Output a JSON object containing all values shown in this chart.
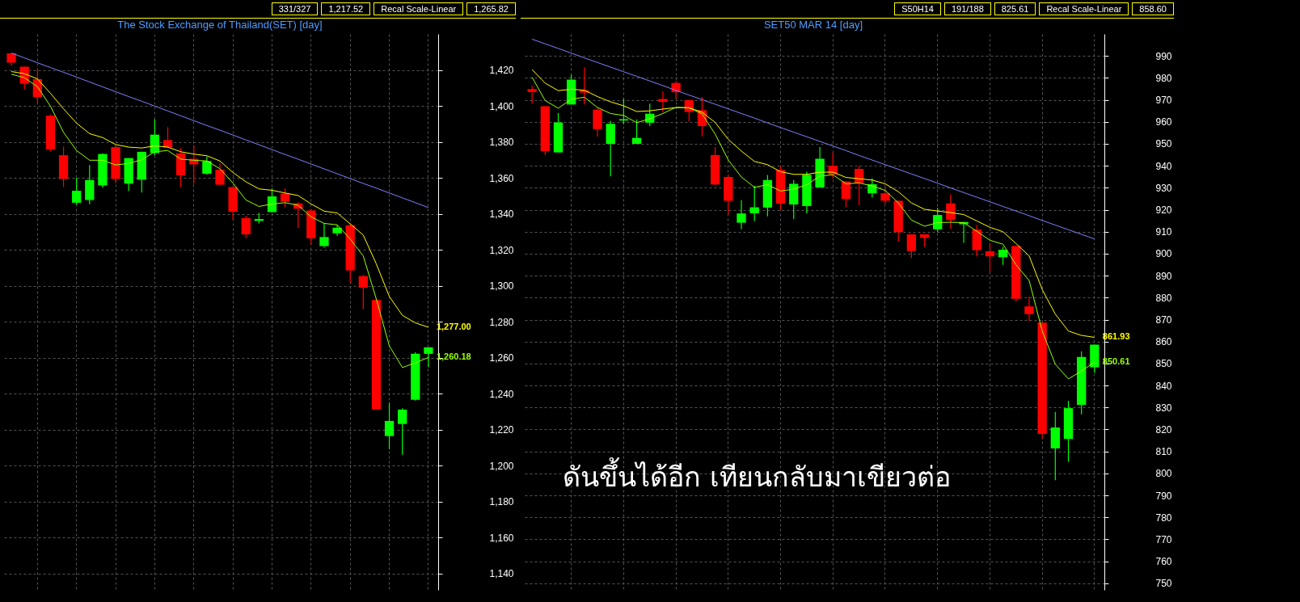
{
  "chart_data": [
    {
      "type": "candlestick",
      "title": "The Stock Exchange of Thailand(SET) [day]",
      "categories": [
        null,
        null,
        null,
        null,
        null,
        null,
        null,
        null,
        null,
        null,
        null,
        null,
        null,
        null,
        null,
        null,
        null,
        null,
        null,
        null,
        null,
        null,
        null,
        null,
        null,
        null,
        null,
        null,
        null,
        null,
        null,
        null,
        null
      ],
      "ohlc": [
        [
          1429.2,
          1429.2,
          1422.3,
          1424.0
        ],
        [
          1421.8,
          1421.8,
          1409.2,
          1412.4
        ],
        [
          1414.9,
          1420.8,
          1401.5,
          1404.9
        ],
        [
          1394.5,
          1395.2,
          1374.8,
          1375.9
        ],
        [
          1372.6,
          1377.4,
          1354.9,
          1359.4
        ],
        [
          1346.2,
          1360.0,
          1345.1,
          1352.8
        ],
        [
          1347.7,
          1367.1,
          1345.4,
          1358.8
        ],
        [
          1355.8,
          1373.6,
          1354.5,
          1373.3
        ],
        [
          1377.1,
          1378.1,
          1357.1,
          1359.4
        ],
        [
          1356.8,
          1371.0,
          1352.8,
          1371.0
        ],
        [
          1359.0,
          1374.5,
          1351.9,
          1374.5
        ],
        [
          1373.8,
          1392.6,
          1372.6,
          1384.0
        ],
        [
          1381.0,
          1388.2,
          1376.9,
          1376.9
        ],
        [
          1373.6,
          1376.6,
          1354.9,
          1361.4
        ],
        [
          1370.6,
          1378.1,
          1356.8,
          1367.5
        ],
        [
          1362.3,
          1371.9,
          1361.9,
          1369.4
        ],
        [
          1364.5,
          1368.3,
          1356.2,
          1356.2
        ],
        [
          1354.9,
          1354.9,
          1336.8,
          1341.2
        ],
        [
          1337.6,
          1339.0,
          1326.4,
          1328.6
        ],
        [
          1336.1,
          1340.5,
          1334.7,
          1337.1
        ],
        [
          1341.0,
          1354.1,
          1340.7,
          1349.7
        ],
        [
          1351.2,
          1354.1,
          1343.6,
          1346.7
        ],
        [
          1345.8,
          1346.5,
          1332.1,
          1342.9
        ],
        [
          1341.9,
          1342.6,
          1322.9,
          1326.4
        ],
        [
          1322.1,
          1334.8,
          1321.2,
          1327.1
        ],
        [
          1329.2,
          1333.8,
          1327.7,
          1332.3
        ],
        [
          1333.7,
          1334.7,
          1301.7,
          1308.6
        ],
        [
          1305.4,
          1306.0,
          1286.9,
          1298.9
        ],
        [
          1292.1,
          1293.0,
          1231.3,
          1231.3
        ],
        [
          1216.5,
          1235.1,
          1209.2,
          1224.9
        ],
        [
          1223.2,
          1231.9,
          1206.1,
          1231.2
        ],
        [
          1236.7,
          1263.0,
          1236.2,
          1262.3
        ],
        [
          1262.2,
          1265.9,
          1254.8,
          1265.82
        ]
      ],
      "colors": [
        "#ff0000",
        "#ff0000",
        "#ff0000",
        "#ff0000",
        "#ff0000",
        "#00ff00",
        "#00ff00",
        "#00ff00",
        "#ff0000",
        "#00ff00",
        "#00ff00",
        "#00ff00",
        "#ff0000",
        "#ff0000",
        "#ff0000",
        "#00ff00",
        "#ff0000",
        "#ff0000",
        "#ff0000",
        "#00ff00",
        "#00ff00",
        "#ff0000",
        "#ff0000",
        "#ff0000",
        "#00ff00",
        "#00ff00",
        "#ff0000",
        "#ff0000",
        "#ff0000",
        "#00ff00",
        "#00ff00",
        "#00ff00",
        "#00ff00"
      ],
      "series": [
        {
          "type": "line",
          "color": "#8080ff",
          "values": [
            1429.4,
            1426.7,
            1424.0,
            1421.3,
            1418.7,
            1416.0,
            1413.3,
            1410.6,
            1407.9,
            1405.2,
            1402.6,
            1399.9,
            1397.2,
            1394.5,
            1391.8,
            1389.1,
            1386.5,
            1383.8,
            1381.1,
            1378.4,
            1375.7,
            1373.0,
            1370.4,
            1367.7,
            1365.0,
            1362.3,
            1359.6,
            1356.9,
            1354.3,
            1351.6,
            1348.9,
            1346.2,
            1343.5
          ]
        },
        {
          "type": "line",
          "color": "#ffff00",
          "values": [
            1419.1,
            1417.9,
            1415.0,
            1407.0,
            1398.4,
            1390.4,
            1384.6,
            1382.4,
            1378.5,
            1377.1,
            1376.6,
            1377.8,
            1377.1,
            1374.5,
            1373.2,
            1372.3,
            1369.4,
            1363.0,
            1357.8,
            1353.9,
            1353.1,
            1351.6,
            1350.2,
            1345.5,
            1341.5,
            1340.5,
            1334.4,
            1328.2,
            1312.2,
            1294.1,
            1283.6,
            1279.4,
            1277.0
          ],
          "value_labels": [
            null,
            null,
            null,
            null,
            null,
            null,
            null,
            null,
            null,
            null,
            null,
            null,
            null,
            null,
            null,
            null,
            null,
            null,
            null,
            null,
            null,
            null,
            null,
            null,
            null,
            null,
            null,
            null,
            null,
            null,
            null,
            null,
            "1,277.00"
          ]
        },
        {
          "type": "line",
          "color": "#99ff00",
          "values": [
            1417.6,
            1415.7,
            1410.7,
            1399.8,
            1385.3,
            1375.2,
            1369.8,
            1369.8,
            1367.2,
            1368.0,
            1370.1,
            1374.5,
            1375.2,
            1370.4,
            1369.8,
            1369.4,
            1365.1,
            1357.1,
            1347.7,
            1344.1,
            1345.5,
            1346.2,
            1344.8,
            1338.3,
            1334.7,
            1333.9,
            1326.0,
            1316.6,
            1292.7,
            1266.6,
            1254.6,
            1257.2,
            1260.18
          ],
          "value_labels": [
            null,
            null,
            null,
            null,
            null,
            null,
            null,
            null,
            null,
            null,
            null,
            null,
            null,
            null,
            null,
            null,
            null,
            null,
            null,
            null,
            null,
            null,
            null,
            null,
            null,
            null,
            null,
            null,
            null,
            null,
            null,
            null,
            "1,260.18"
          ]
        }
      ],
      "ylim": [
        1131,
        1440
      ],
      "yticks": [
        {
          "value": 1140,
          "label": "1,140"
        },
        {
          "value": 1160,
          "label": "1,160"
        },
        {
          "value": 1180,
          "label": "1,180"
        },
        {
          "value": 1200,
          "label": "1,200"
        },
        {
          "value": 1220,
          "label": "1,220"
        },
        {
          "value": 1240,
          "label": "1,240"
        },
        {
          "value": 1260,
          "label": "1,260"
        },
        {
          "value": 1280,
          "label": "1,280"
        },
        {
          "value": 1300,
          "label": "1,300"
        },
        {
          "value": 1320,
          "label": "1,320"
        },
        {
          "value": 1340,
          "label": "1,340"
        },
        {
          "value": 1360,
          "label": "1,360"
        },
        {
          "value": 1380,
          "label": "1,380"
        },
        {
          "value": 1400,
          "label": "1,400"
        },
        {
          "value": 1420,
          "label": "1,420"
        }
      ],
      "grid": true,
      "annotations": [
        "331/327",
        "1,217.52",
        "Recal Scale-Linear",
        "1,265.82"
      ]
    },
    {
      "type": "candlestick",
      "title": "SET50 MAR 14   [day]",
      "subtitle": "ดันขึ้นได้อีก เทียนกลับมาเขียวต่อ",
      "categories": [
        null,
        null,
        null,
        null,
        null,
        null,
        null,
        null,
        null,
        null,
        null,
        null,
        null,
        null,
        null,
        null,
        null,
        null,
        null,
        null,
        null,
        null,
        null,
        null,
        null,
        null,
        null,
        null,
        null,
        null,
        null,
        null,
        null,
        null,
        null,
        null,
        null,
        null,
        null,
        null,
        null,
        null,
        null,
        null
      ],
      "ohlc": [
        [
          974.9,
          976.4,
          968.3,
          973.6
        ],
        [
          967.1,
          967.1,
          944.9,
          946.7
        ],
        [
          946.1,
          964.0,
          946.1,
          959.7
        ],
        [
          967.9,
          981.4,
          967.9,
          979.2
        ],
        [
          974.3,
          984.8,
          967.9,
          973.3
        ],
        [
          965.5,
          966.4,
          953.2,
          956.7
        ],
        [
          950.0,
          960.5,
          935.2,
          959.1
        ],
        [
          960.6,
          970.6,
          958.9,
          961.2
        ],
        [
          950.0,
          961.1,
          950.0,
          952.7
        ],
        [
          959.6,
          968.3,
          958.1,
          963.7
        ],
        [
          970.4,
          973.9,
          964.4,
          969.1
        ],
        [
          977.7,
          978.5,
          970.5,
          973.5
        ],
        [
          969.9,
          969.9,
          960.0,
          964.5
        ],
        [
          965.3,
          971.3,
          953.4,
          958.1
        ],
        [
          944.9,
          948.5,
          931.2,
          931.5
        ],
        [
          934.9,
          935.9,
          917.8,
          924.1
        ],
        [
          914.1,
          924.3,
          911.1,
          918.3
        ],
        [
          918.4,
          931.0,
          914.9,
          921.1
        ],
        [
          921.0,
          935.8,
          917.0,
          933.5
        ],
        [
          938.1,
          939.9,
          919.8,
          922.8
        ],
        [
          922.4,
          933.5,
          915.7,
          931.8
        ],
        [
          921.7,
          937.3,
          918.4,
          935.9
        ],
        [
          930.2,
          948.5,
          930.2,
          943.2
        ],
        [
          940.0,
          946.0,
          934.3,
          936.1
        ],
        [
          932.9,
          932.9,
          921.1,
          924.9
        ],
        [
          938.6,
          940.0,
          922.0,
          932.2
        ],
        [
          927.5,
          934.3,
          925.5,
          931.6
        ],
        [
          927.5,
          929.6,
          922.6,
          924.1
        ],
        [
          924.1,
          924.1,
          905.5,
          909.8
        ],
        [
          908.8,
          908.8,
          898.0,
          901.2
        ],
        [
          908.8,
          908.8,
          903.1,
          907.2
        ],
        [
          911.1,
          920.8,
          909.8,
          917.6
        ],
        [
          922.9,
          927.0,
          911.4,
          915.3
        ],
        [
          913.4,
          914.4,
          904.9,
          914.4
        ],
        [
          911.0,
          913.1,
          898.8,
          901.6
        ],
        [
          901.1,
          904.9,
          891.7,
          898.8
        ],
        [
          898.4,
          903.1,
          894.9,
          901.8
        ],
        [
          903.5,
          903.5,
          878.1,
          879.5
        ],
        [
          876.0,
          880.5,
          869.3,
          872.5
        ],
        [
          868.6,
          868.6,
          815.9,
          818.0
        ],
        [
          811.4,
          828.0,
          796.9,
          820.9
        ],
        [
          815.7,
          833.0,
          805.3,
          829.7
        ],
        [
          831.2,
          855.6,
          826.9,
          853.0
        ],
        [
          848.3,
          858.6,
          845.7,
          858.6
        ]
      ],
      "colors": [
        "#ff0000",
        "#ff0000",
        "#00ff00",
        "#00ff00",
        "#ff0000",
        "#ff0000",
        "#00ff00",
        "#00ff00",
        "#00ff00",
        "#00ff00",
        "#ff0000",
        "#ff0000",
        "#ff0000",
        "#ff0000",
        "#ff0000",
        "#ff0000",
        "#00ff00",
        "#00ff00",
        "#00ff00",
        "#ff0000",
        "#00ff00",
        "#00ff00",
        "#00ff00",
        "#ff0000",
        "#ff0000",
        "#ff0000",
        "#00ff00",
        "#ff0000",
        "#ff0000",
        "#ff0000",
        "#ff0000",
        "#00ff00",
        "#ff0000",
        "#00ff00",
        "#ff0000",
        "#ff0000",
        "#00ff00",
        "#ff0000",
        "#ff0000",
        "#ff0000",
        "#00ff00",
        "#00ff00",
        "#00ff00",
        "#00ff00"
      ],
      "series": [
        {
          "type": "line",
          "color": "#8080ff",
          "values": [
            997.6,
            995.5,
            993.4,
            991.3,
            989.1,
            987.0,
            984.9,
            982.8,
            980.7,
            978.6,
            976.5,
            974.3,
            972.2,
            970.1,
            968.0,
            965.9,
            963.8,
            961.7,
            959.5,
            957.4,
            955.3,
            953.2,
            951.1,
            949.0,
            946.9,
            944.7,
            942.6,
            940.5,
            938.4,
            936.3,
            934.2,
            932.1,
            929.9,
            927.8,
            925.7,
            923.6,
            921.5,
            919.4,
            917.3,
            915.1,
            913.0,
            910.9,
            908.8,
            906.7
          ]
        },
        {
          "type": "line",
          "color": "#ffff00",
          "values": [
            983.8,
            977.6,
            974.2,
            974.8,
            974.4,
            971.5,
            969.1,
            967.3,
            964.7,
            965.0,
            965.8,
            966.5,
            966.4,
            964.4,
            959.7,
            952.0,
            946.7,
            942.0,
            940.5,
            937.3,
            936.1,
            936.1,
            937.1,
            937.1,
            934.7,
            934.1,
            933.5,
            931.8,
            928.2,
            923.1,
            920.2,
            919.4,
            918.7,
            917.8,
            914.9,
            912.0,
            910.0,
            904.6,
            899.0,
            883.7,
            872.5,
            864.8,
            862.8,
            861.93
          ],
          "value_labels": [
            null,
            null,
            null,
            null,
            null,
            null,
            null,
            null,
            null,
            null,
            null,
            null,
            null,
            null,
            null,
            null,
            null,
            null,
            null,
            null,
            null,
            null,
            null,
            null,
            null,
            null,
            null,
            null,
            null,
            null,
            null,
            null,
            null,
            null,
            null,
            null,
            null,
            null,
            null,
            null,
            null,
            null,
            null,
            "861.93"
          ]
        },
        {
          "type": "line",
          "color": "#99ff00",
          "values": [
            980.3,
            969.7,
            966.2,
            970.3,
            971.2,
            966.5,
            963.8,
            962.9,
            959.6,
            961.4,
            963.8,
            966.6,
            966.4,
            963.6,
            954.4,
            942.6,
            934.9,
            930.2,
            931.4,
            928.5,
            929.4,
            931.4,
            935.3,
            935.9,
            931.8,
            932.2,
            930.8,
            928.8,
            923.1,
            915.3,
            912.5,
            914.1,
            914.3,
            914.1,
            910.2,
            906.1,
            904.3,
            894.9,
            887.8,
            864.8,
            849.7,
            843.0,
            846.6,
            850.61
          ],
          "value_labels": [
            null,
            null,
            null,
            null,
            null,
            null,
            null,
            null,
            null,
            null,
            null,
            null,
            null,
            null,
            null,
            null,
            null,
            null,
            null,
            null,
            null,
            null,
            null,
            null,
            null,
            null,
            null,
            null,
            null,
            null,
            null,
            null,
            null,
            null,
            null,
            null,
            null,
            null,
            null,
            null,
            null,
            null,
            null,
            "850.61"
          ]
        }
      ],
      "ylim": [
        747,
        1000
      ],
      "yticks": [
        750,
        760,
        770,
        780,
        790,
        800,
        810,
        820,
        830,
        840,
        850,
        860,
        870,
        880,
        890,
        900,
        910,
        920,
        930,
        940,
        950,
        960,
        970,
        980,
        990
      ],
      "grid": true,
      "annotations": [
        "S50H14",
        "191/188",
        "825.61",
        "Recal Scale-Linear",
        "858.60"
      ]
    }
  ]
}
